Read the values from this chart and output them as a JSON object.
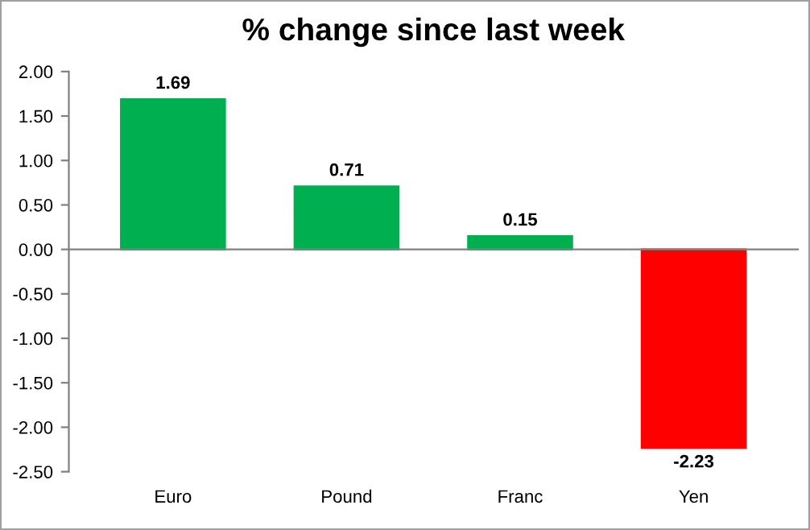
{
  "chart_data": {
    "type": "bar",
    "title": "% change since last week",
    "categories": [
      "Euro",
      "Pound",
      "Franc",
      "Yen"
    ],
    "values": [
      1.69,
      0.71,
      0.15,
      -2.23
    ],
    "colors": [
      "#00b050",
      "#00b050",
      "#00b050",
      "#ff0000"
    ],
    "ylim": [
      -2.5,
      2.0
    ],
    "yticks": [
      {
        "value": 2.0,
        "label": "2.00"
      },
      {
        "value": 1.5,
        "label": "1.50"
      },
      {
        "value": 1.0,
        "label": "1.00"
      },
      {
        "value": 0.5,
        "label": "0.50"
      },
      {
        "value": 0.0,
        "label": "0.00"
      },
      {
        "value": -0.5,
        "label": "-0.50"
      },
      {
        "value": -1.0,
        "label": "-1.00"
      },
      {
        "value": -1.5,
        "label": "-1.50"
      },
      {
        "value": -2.0,
        "label": "-2.00"
      },
      {
        "value": -2.5,
        "label": "-2.50"
      }
    ],
    "data_labels": true,
    "legend": false
  }
}
